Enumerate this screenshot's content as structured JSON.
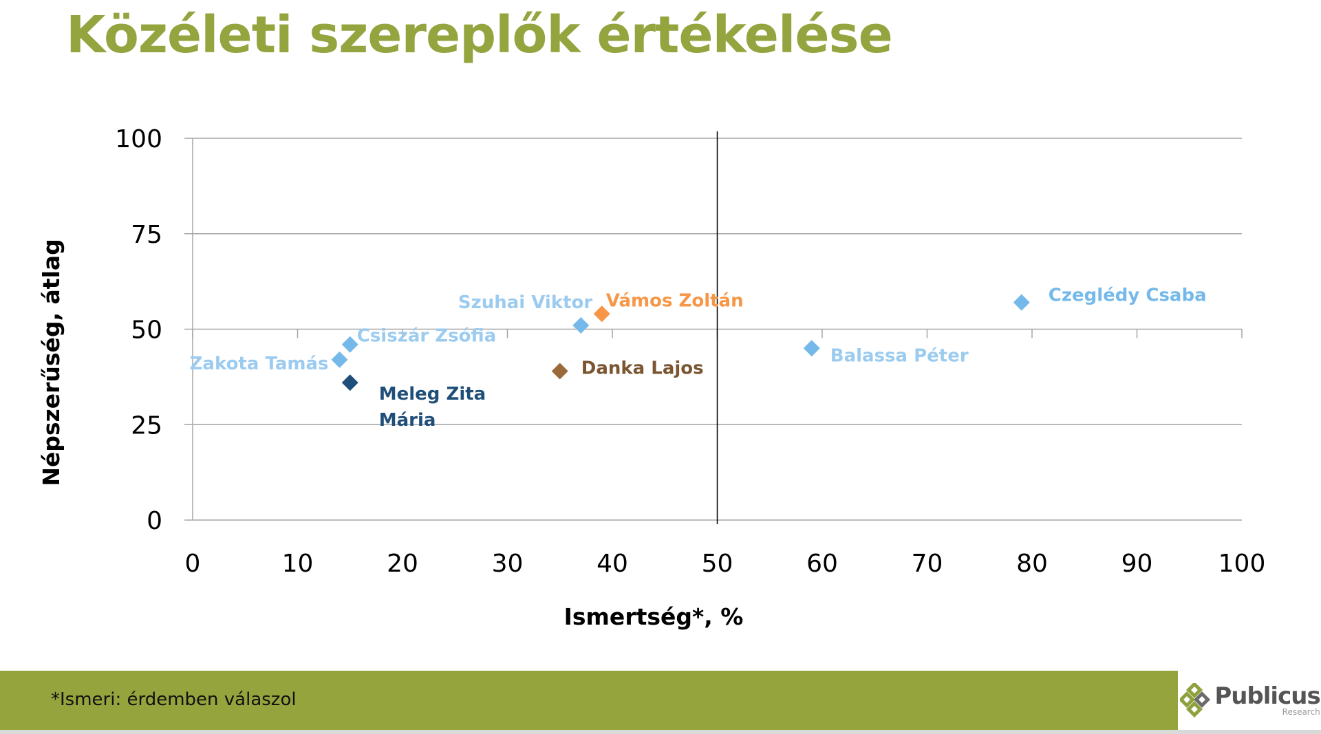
{
  "title": "Közéleti szereplők értékelése",
  "footnote": "*Ismeri: érdemben válaszol",
  "logo": {
    "name": "Publicus",
    "sub": "Research"
  },
  "colors": {
    "title": "#94a43f",
    "footer": "#96a43d",
    "light_blue": "#74b9ea",
    "dark_blue": "#1f4e79",
    "orange": "#f79646",
    "brown": "#9b6a3a"
  },
  "chart_data": {
    "type": "scatter",
    "xlabel": "Ismertség*, %",
    "ylabel": "Népszerűség, átlag",
    "xlim": [
      0,
      100
    ],
    "ylim": [
      0,
      100
    ],
    "xticks": [
      0,
      10,
      20,
      30,
      40,
      50,
      60,
      70,
      80,
      90,
      100
    ],
    "yticks": [
      0,
      25,
      50,
      75,
      100
    ],
    "grid": "horizontal",
    "reference_line_x": 50,
    "points": [
      {
        "label": "Zakota Tamás",
        "x": 14,
        "y": 42,
        "color": "#74b9ea",
        "label_color": "#9ccbf0"
      },
      {
        "label": "Csiszár Zsófia",
        "x": 15,
        "y": 46,
        "color": "#74b9ea",
        "label_color": "#9ccbf0"
      },
      {
        "label": "Meleg Zita Mária",
        "x": 15,
        "y": 36,
        "color": "#1f4e79",
        "label_color": "#1f4e79"
      },
      {
        "label": "Szuhai Viktor",
        "x": 37,
        "y": 51,
        "color": "#74b9ea",
        "label_color": "#9ccbf0"
      },
      {
        "label": "Vámos Zoltán",
        "x": 39,
        "y": 54,
        "color": "#f79646",
        "label_color": "#f79646"
      },
      {
        "label": "Danka Lajos",
        "x": 35,
        "y": 39,
        "color": "#9b6a3a",
        "label_color": "#7a5530"
      },
      {
        "label": "Balassa Péter",
        "x": 59,
        "y": 45,
        "color": "#74b9ea",
        "label_color": "#9ccbf0"
      },
      {
        "label": "Czeglédy Csaba",
        "x": 79,
        "y": 57,
        "color": "#74b9ea",
        "label_color": "#74b9ea"
      }
    ]
  }
}
